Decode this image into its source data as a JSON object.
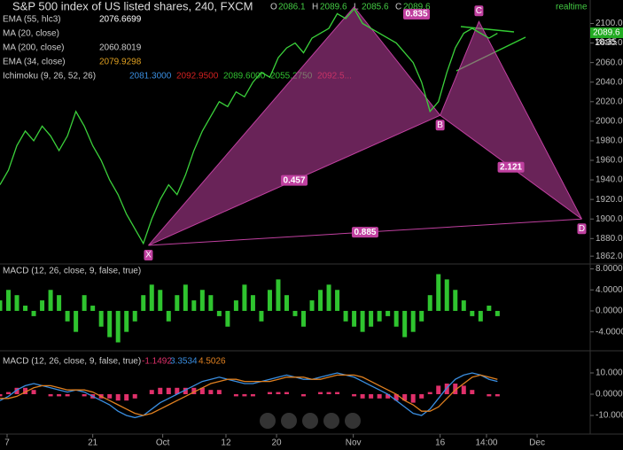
{
  "chart_data": [
    {
      "type": "line",
      "title": "S&P 500 index of US listed shares, 240, FXCM",
      "ohlc": {
        "labels": [
          "O",
          "H",
          "L",
          "C"
        ],
        "values": [
          2086.1,
          2089.6,
          2085.6,
          2089.6
        ]
      },
      "indicators": [
        {
          "name": "EMA (55, hlc3)",
          "values": [
            "2076.6699"
          ],
          "colors": [
            "#ffffff"
          ]
        },
        {
          "name": "MA (20, close)",
          "values": [],
          "colors": []
        },
        {
          "name": "MA (200, close)",
          "values": [
            "2060.8019"
          ],
          "colors": [
            "#cccccc"
          ]
        },
        {
          "name": "EMA (34, close)",
          "values": [
            "2079.9298"
          ],
          "colors": [
            "#e0a020"
          ]
        },
        {
          "name": "Ichimoku (9, 26, 52, 26)",
          "values": [
            "2081.3000",
            "2092.9500",
            "2089.6000",
            "2055.2750",
            "2092.5..."
          ],
          "colors": [
            "#3a8ee0",
            "#d02020",
            "#30c030",
            "#30c030",
            "#d02020"
          ]
        }
      ],
      "series": [
        {
          "color": "#3bd13b",
          "values": [
            1935,
            1950,
            1975,
            1990,
            1980,
            1995,
            1985,
            1970,
            1985,
            2010,
            1995,
            1975,
            1960,
            1940,
            1925,
            1905,
            1890,
            1875,
            1900,
            1920,
            1935,
            1925,
            1945,
            1970,
            1990,
            2005,
            2020,
            2015,
            2030,
            2025,
            2040,
            2050,
            2045,
            2065,
            2075,
            2080,
            2070,
            2085,
            2090,
            2095,
            2110,
            2105,
            2115,
            2100,
            2095,
            2090,
            2085,
            2080,
            2070,
            2060,
            2040,
            2010,
            2020,
            2050,
            2075,
            2090,
            2095,
            2090,
            2085,
            2090
          ]
        }
      ],
      "pattern": {
        "color": "#c040a0",
        "x": [
          17.6,
          42,
          52.2,
          56.8,
          69
        ],
        "y": [
          1873,
          2117,
          2006,
          2102,
          1900
        ],
        "labels": [
          "X",
          null,
          "B",
          "C",
          "D"
        ],
        "ratios": [
          0.457,
          0.835,
          2.121,
          0.885
        ]
      },
      "last_price": {
        "label": "2089.6",
        "countdown": "18:35"
      },
      "xlim": [
        0,
        70
      ],
      "ylim": [
        1854,
        2124
      ],
      "yticks": [
        {
          "value": 1862,
          "label": "1862.0"
        },
        {
          "value": 1880,
          "label": "1880.0"
        },
        {
          "value": 1900,
          "label": "1900.0"
        },
        {
          "value": 1920,
          "label": "1920.0"
        },
        {
          "value": 1940,
          "label": "1940.0"
        },
        {
          "value": 1960,
          "label": "1960.0"
        },
        {
          "value": 1980,
          "label": "1980.0"
        },
        {
          "value": 2000,
          "label": "2000.0"
        },
        {
          "value": 2020,
          "label": "2020.0"
        },
        {
          "value": 2040,
          "label": "2040.0"
        },
        {
          "value": 2060,
          "label": "2060.0"
        },
        {
          "value": 2080,
          "label": "2080.0"
        },
        {
          "value": 2100,
          "label": "2100.0"
        }
      ],
      "xticks": [
        {
          "value": 0.84,
          "label": "7"
        },
        {
          "value": 11,
          "label": "21"
        },
        {
          "value": 19.3,
          "label": "Oct"
        },
        {
          "value": 26.8,
          "label": "12"
        },
        {
          "value": 32.8,
          "label": "20"
        },
        {
          "value": 41.9,
          "label": "Nov"
        },
        {
          "value": 52.2,
          "label": "16"
        },
        {
          "value": 57.7,
          "label": "14:00"
        },
        {
          "value": 63.7,
          "label": "Dec"
        }
      ],
      "status": "realtime"
    },
    {
      "type": "bar",
      "title": "MACD (12, 26, close, 9, false, true)",
      "values": [
        2,
        4,
        3,
        1,
        -1,
        2,
        4,
        3,
        -2,
        -4,
        3,
        1,
        -3,
        -5,
        -6,
        -4,
        -2,
        3,
        5,
        4,
        -2,
        3,
        5,
        2,
        4,
        3,
        -1,
        -3,
        2,
        5,
        3,
        -2,
        4,
        6,
        3,
        -1,
        -3,
        2,
        4,
        5,
        4,
        -2,
        -3,
        -4,
        -3,
        -2,
        -1,
        -3,
        -5,
        -4,
        -2,
        3,
        7,
        6,
        4,
        2,
        -1,
        -2,
        1,
        -1
      ],
      "color": "#2fc42f",
      "ylim": [
        -7.6,
        8.6
      ],
      "yticks": [
        {
          "value": 8,
          "label": "8.0000"
        },
        {
          "value": 4,
          "label": "4.0000"
        },
        {
          "value": 0,
          "label": "0.0000"
        },
        {
          "value": -4,
          "label": "-4.0000"
        }
      ]
    },
    {
      "type": "macd",
      "title": "MACD (12, 26, close, 9, false, true)",
      "legend_values": [
        "-1.1492",
        "3.3534",
        "4.5026"
      ],
      "histogram": {
        "color": "#e0306a",
        "values": [
          -1,
          1,
          3,
          3,
          2,
          0,
          -1,
          -1,
          -1,
          0,
          -1,
          -2,
          -2,
          -2,
          -3,
          -3,
          -2,
          0,
          2,
          3,
          3,
          3,
          3,
          3,
          3,
          2,
          2,
          0,
          -1,
          -1,
          -1,
          0,
          1,
          1,
          1,
          0,
          -1,
          0,
          1,
          1,
          1,
          0,
          -1,
          -2,
          -2,
          -2,
          -2,
          -3,
          -3,
          -4,
          -2,
          1,
          4,
          5,
          5,
          4,
          2,
          0,
          -1,
          -1
        ]
      },
      "series": [
        {
          "color": "#3a8ee0",
          "values": [
            -3,
            -1,
            2,
            4,
            5,
            4,
            3,
            2,
            1,
            2,
            1,
            -1,
            -3,
            -5,
            -8,
            -10,
            -11,
            -10,
            -7,
            -4,
            -2,
            0,
            2,
            4,
            6,
            7,
            8,
            7,
            6,
            5,
            5,
            6,
            7,
            8,
            9,
            8,
            7,
            7,
            8,
            9,
            10,
            9,
            8,
            6,
            4,
            2,
            0,
            -3,
            -6,
            -9,
            -10,
            -7,
            -2,
            3,
            7,
            9,
            10,
            9,
            7,
            6
          ]
        },
        {
          "color": "#e08020",
          "values": [
            -2,
            -2,
            -1,
            1,
            3,
            4,
            4,
            3,
            2,
            2,
            2,
            1,
            -1,
            -3,
            -5,
            -7,
            -9,
            -10,
            -9,
            -7,
            -5,
            -3,
            -1,
            1,
            3,
            5,
            6,
            7,
            7,
            6,
            6,
            6,
            6,
            7,
            8,
            8,
            8,
            7,
            7,
            8,
            9,
            9,
            9,
            8,
            6,
            4,
            2,
            0,
            -3,
            -5,
            -8,
            -8,
            -6,
            -2,
            2,
            5,
            8,
            9,
            8,
            7
          ]
        }
      ],
      "ylim": [
        -18.75,
        18.75
      ],
      "yticks": [
        {
          "value": 10,
          "label": "10.0000"
        },
        {
          "value": 0,
          "label": "0.0000"
        },
        {
          "value": -10,
          "label": "-10.0000"
        }
      ]
    }
  ]
}
